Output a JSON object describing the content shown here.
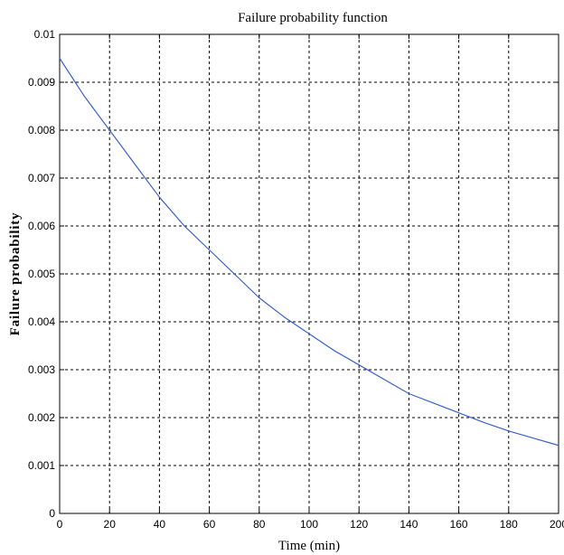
{
  "chart_data": {
    "type": "line",
    "title": "Failure probability function",
    "xlabel": "Time (min)",
    "ylabel": "Failure probability",
    "xlim": [
      0,
      200
    ],
    "ylim": [
      0,
      0.01
    ],
    "x_ticks": [
      0,
      20,
      40,
      60,
      80,
      100,
      120,
      140,
      160,
      180,
      200
    ],
    "x_tick_labels": [
      "0",
      "20",
      "40",
      "60",
      "80",
      "100",
      "120",
      "140",
      "160",
      "180",
      "200"
    ],
    "y_ticks": [
      0,
      0.001,
      0.002,
      0.003,
      0.004,
      0.005,
      0.006,
      0.007,
      0.008,
      0.009,
      0.01
    ],
    "y_tick_labels": [
      "0",
      "0.001",
      "0.002",
      "0.003",
      "0.004",
      "0.005",
      "0.006",
      "0.007",
      "0.008",
      "0.009",
      "0.01"
    ],
    "grid": true,
    "series": [
      {
        "color": "#3a5fcd",
        "x": [
          0,
          10,
          20,
          30,
          40,
          50,
          60,
          70,
          80,
          90,
          100,
          110,
          120,
          130,
          140,
          150,
          160,
          170,
          180,
          190,
          200
        ],
        "y": [
          0.0095,
          0.0087,
          0.008,
          0.0073,
          0.0066,
          0.006,
          0.0055,
          0.005,
          0.0045,
          0.0041,
          0.00375,
          0.0034,
          0.0031,
          0.0028,
          0.0025,
          0.0023,
          0.0021,
          0.0019,
          0.00172,
          0.00157,
          0.00142
        ]
      }
    ]
  }
}
